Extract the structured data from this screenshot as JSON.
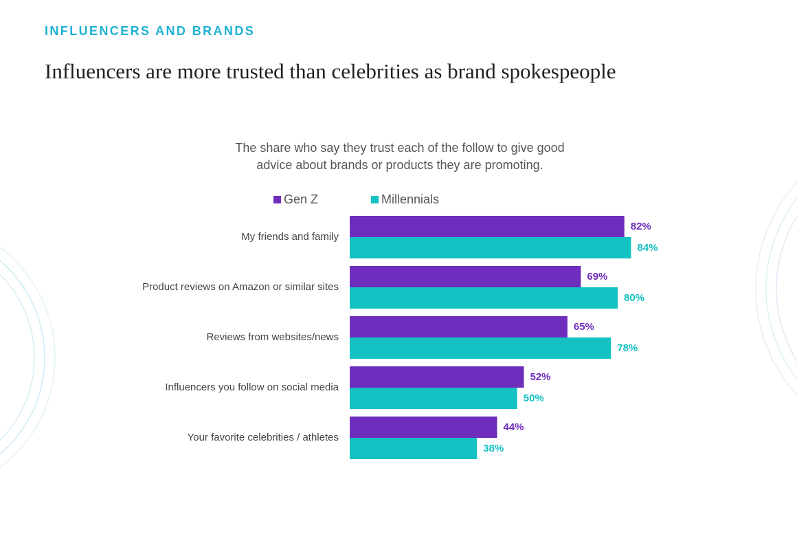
{
  "header": {
    "section": "INFLUENCERS AND BRANDS",
    "title": "Influencers are more trusted than celebrities as brand spokespeople"
  },
  "chart_data": {
    "type": "bar",
    "orientation": "horizontal",
    "title": [
      "The share who say they trust each of the follow to give good",
      "advice about brands or products they are promoting."
    ],
    "categories": [
      "My friends and family",
      "Product reviews on Amazon or similar sites",
      "Reviews from websites/news",
      "Influencers you follow on social media",
      "Your favorite celebrities / athletes"
    ],
    "series": [
      {
        "name": "Gen Z",
        "color": "#6f2dbd",
        "values": [
          82,
          69,
          65,
          52,
          44
        ],
        "value_labels": [
          "82%",
          "69%",
          "65%",
          "52%",
          "44%"
        ]
      },
      {
        "name": "Millennials",
        "color": "#14c1c3",
        "values": [
          84,
          80,
          78,
          50,
          38
        ],
        "value_labels": [
          "84%",
          "80%",
          "78%",
          "50%",
          "38%"
        ]
      }
    ],
    "legend": "top"
  }
}
